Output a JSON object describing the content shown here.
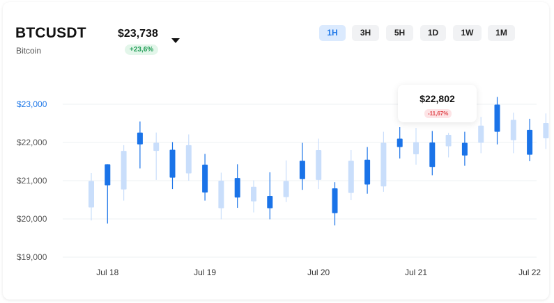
{
  "header": {
    "symbol": "BTCUSDT",
    "name": "Bitcoin",
    "price": "$23,738",
    "change": "+23,6%"
  },
  "timeframes": [
    {
      "label": "1H",
      "active": true
    },
    {
      "label": "3H",
      "active": false
    },
    {
      "label": "5H",
      "active": false
    },
    {
      "label": "1D",
      "active": false
    },
    {
      "label": "1W",
      "active": false
    },
    {
      "label": "1M",
      "active": false
    }
  ],
  "tooltip": {
    "price": "$22,802",
    "change": "-11,67%"
  },
  "colors": {
    "dark_candle": "#1a73e8",
    "light_candle": "#c9defb",
    "accent": "#1f78e8"
  },
  "chart_data": {
    "type": "candlestick",
    "y_tick_labels": [
      "$23,000",
      "$22,000",
      "$21,000",
      "$20,000",
      "$19,000"
    ],
    "y_ticks": [
      23000,
      22000,
      21000,
      20000,
      19000
    ],
    "ylim": [
      19000,
      23500
    ],
    "x_labels": [
      {
        "label": "Jul 18",
        "index": 1
      },
      {
        "label": "Jul 19",
        "index": 7
      },
      {
        "label": "Jul 20",
        "index": 14
      },
      {
        "label": "Jul 21",
        "index": 20
      },
      {
        "label": "Jul 22",
        "index": 27
      }
    ],
    "grid": true,
    "candles": [
      {
        "o": 20300,
        "h": 21200,
        "l": 19960,
        "c": 20990,
        "style": "light"
      },
      {
        "o": 20880,
        "h": 21430,
        "l": 19880,
        "c": 21430,
        "style": "dark"
      },
      {
        "o": 20770,
        "h": 21930,
        "l": 20480,
        "c": 21780,
        "style": "light"
      },
      {
        "o": 21950,
        "h": 22550,
        "l": 21320,
        "c": 22260,
        "style": "dark"
      },
      {
        "o": 21780,
        "h": 22260,
        "l": 21020,
        "c": 21990,
        "style": "light"
      },
      {
        "o": 21080,
        "h": 22010,
        "l": 20780,
        "c": 21810,
        "style": "dark"
      },
      {
        "o": 21190,
        "h": 22210,
        "l": 21000,
        "c": 21930,
        "style": "light"
      },
      {
        "o": 20690,
        "h": 21700,
        "l": 20480,
        "c": 21420,
        "style": "dark"
      },
      {
        "o": 20280,
        "h": 21210,
        "l": 19990,
        "c": 21000,
        "style": "light"
      },
      {
        "o": 20560,
        "h": 21430,
        "l": 20290,
        "c": 21070,
        "style": "dark"
      },
      {
        "o": 20460,
        "h": 21010,
        "l": 20170,
        "c": 20840,
        "style": "light"
      },
      {
        "o": 20280,
        "h": 21220,
        "l": 19990,
        "c": 20600,
        "style": "dark"
      },
      {
        "o": 20570,
        "h": 21530,
        "l": 20440,
        "c": 20990,
        "style": "light"
      },
      {
        "o": 21040,
        "h": 21990,
        "l": 20760,
        "c": 21520,
        "style": "dark"
      },
      {
        "o": 21020,
        "h": 22100,
        "l": 20780,
        "c": 21800,
        "style": "light"
      },
      {
        "o": 20150,
        "h": 20960,
        "l": 19830,
        "c": 20800,
        "style": "dark"
      },
      {
        "o": 20680,
        "h": 21800,
        "l": 20490,
        "c": 21520,
        "style": "light"
      },
      {
        "o": 20900,
        "h": 21880,
        "l": 20660,
        "c": 21550,
        "style": "dark"
      },
      {
        "o": 20850,
        "h": 22280,
        "l": 20710,
        "c": 21990,
        "style": "light"
      },
      {
        "o": 21880,
        "h": 22400,
        "l": 21580,
        "c": 22100,
        "style": "dark"
      },
      {
        "o": 21690,
        "h": 22380,
        "l": 21420,
        "c": 22010,
        "style": "light"
      },
      {
        "o": 21360,
        "h": 22300,
        "l": 21140,
        "c": 22000,
        "style": "dark"
      },
      {
        "o": 21900,
        "h": 22250,
        "l": 21610,
        "c": 22200,
        "style": "light"
      },
      {
        "o": 21660,
        "h": 22280,
        "l": 21390,
        "c": 21990,
        "style": "dark"
      },
      {
        "o": 21990,
        "h": 22670,
        "l": 21720,
        "c": 22440,
        "style": "light"
      },
      {
        "o": 22280,
        "h": 23190,
        "l": 21950,
        "c": 22990,
        "style": "dark"
      },
      {
        "o": 22060,
        "h": 22780,
        "l": 21720,
        "c": 22590,
        "style": "light"
      },
      {
        "o": 21680,
        "h": 22620,
        "l": 21510,
        "c": 22330,
        "style": "dark"
      },
      {
        "o": 22110,
        "h": 22760,
        "l": 21830,
        "c": 22510,
        "style": "light"
      }
    ]
  }
}
